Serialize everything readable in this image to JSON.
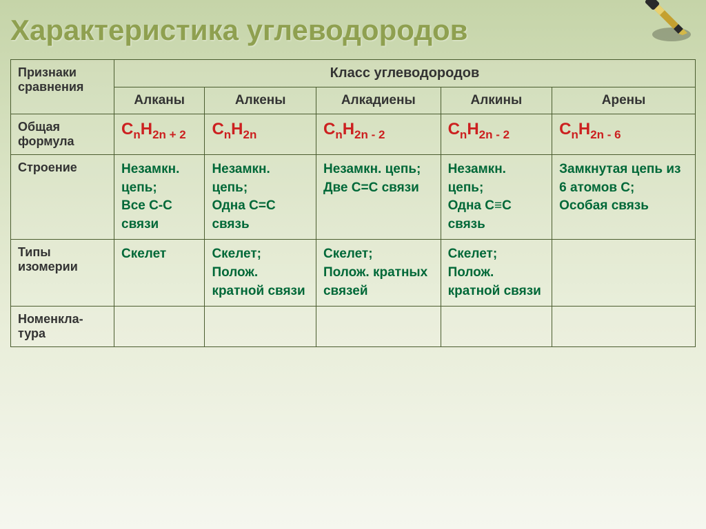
{
  "title": "Характеристика углеводородов",
  "rowHeaders": {
    "comparison": "Признаки сравнения",
    "class": "Класс углеводородов",
    "formula": "Общая формула",
    "structure": "Строение",
    "isomerism": "Типы изомерии",
    "nomenclature": "Номенкла-тура"
  },
  "columns": [
    "Алканы",
    "Алкены",
    "Алкадиены",
    "Алкины",
    "Арены"
  ],
  "formulas": {
    "alkanes": {
      "base": "C",
      "s1": "n",
      "mid": "H",
      "s2": "2n + 2"
    },
    "alkenes": {
      "base": "C",
      "s1": "n",
      "mid": "H",
      "s2": "2n"
    },
    "alkadienes": {
      "base": "C",
      "s1": "n",
      "mid": "H",
      "s2": "2n - 2"
    },
    "alkynes": {
      "base": "C",
      "s1": "n",
      "mid": "H",
      "s2": "2n - 2"
    },
    "arenes": {
      "base": "C",
      "s1": "n",
      "mid": "H",
      "s2": "2n - 6"
    }
  },
  "structures": {
    "alkanes": "Незамкн. цепь;\nВсе  С-С связи",
    "alkenes": "Незамкн. цепь;\nОдна С=С связь",
    "alkadienes": "Незамкн. цепь;\nДве С=С связи",
    "alkynes": "Незамкн. цепь;\nОдна С≡С связь",
    "arenes": "Замкнутая цепь из 6 атомов С;\nОсобая связь"
  },
  "isomerism": {
    "alkanes": "Скелет",
    "alkenes": "Скелет;\nПолож. кратной связи",
    "alkadienes": "Скелет;\nПолож. кратных связей",
    "alkynes": "Скелет;\nПолож. кратной связи",
    "arenes": ""
  },
  "colors": {
    "title": "#8fa050",
    "formula": "#cc2020",
    "greenText": "#006838",
    "border": "#4a5c2f"
  }
}
